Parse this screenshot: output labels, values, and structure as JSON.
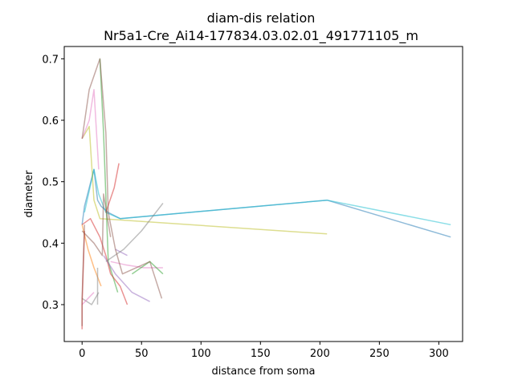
{
  "chart_data": {
    "type": "line",
    "title": "diam-dis relation",
    "subtitle": "Nr5a1-Cre_Ai14-177834.03.02.01_491771105_m",
    "xlabel": "distance from soma",
    "ylabel": "diameter",
    "xlim": [
      -15,
      320
    ],
    "ylim": [
      0.24,
      0.72
    ],
    "xticks": [
      0,
      50,
      100,
      150,
      200,
      250,
      300
    ],
    "yticks": [
      0.3,
      0.4,
      0.5,
      0.6,
      0.7
    ],
    "xtick_labels": [
      "0",
      "50",
      "100",
      "150",
      "200",
      "250",
      "300"
    ],
    "ytick_labels": [
      "0.3",
      "0.4",
      "0.5",
      "0.6",
      "0.7"
    ],
    "grid": false,
    "legend": "none",
    "series": [
      {
        "color": "#1f77b4",
        "x": [
          0,
          2,
          10,
          13,
          16,
          22,
          32,
          206,
          310
        ],
        "y": [
          0.43,
          0.46,
          0.52,
          0.47,
          0.46,
          0.45,
          0.44,
          0.47,
          0.41
        ]
      },
      {
        "color": "#17becf",
        "x": [
          2,
          10,
          14,
          20,
          32,
          206,
          310
        ],
        "y": [
          0.45,
          0.52,
          0.48,
          0.45,
          0.44,
          0.47,
          0.43
        ]
      },
      {
        "color": "#bcbd22",
        "x": [
          0,
          6,
          10,
          15,
          206
        ],
        "y": [
          0.57,
          0.59,
          0.47,
          0.44,
          0.415
        ]
      },
      {
        "color": "#2ca02c",
        "x": [
          15,
          18,
          22,
          30
        ],
        "y": [
          0.7,
          0.58,
          0.37,
          0.32
        ]
      },
      {
        "color": "#d62728",
        "x": [
          0,
          7,
          15,
          20,
          24,
          32,
          38
        ],
        "y": [
          0.43,
          0.44,
          0.41,
          0.38,
          0.35,
          0.33,
          0.3
        ]
      },
      {
        "color": "#ff7f0e",
        "x": [
          0,
          5,
          10,
          16
        ],
        "y": [
          0.43,
          0.39,
          0.36,
          0.33
        ]
      },
      {
        "color": "#9467bd",
        "x": [
          18,
          28,
          42,
          57
        ],
        "y": [
          0.38,
          0.35,
          0.32,
          0.305
        ]
      },
      {
        "color": "#9467bd",
        "x": [
          28,
          38
        ],
        "y": [
          0.39,
          0.38
        ]
      },
      {
        "color": "#e377c2",
        "x": [
          0,
          6,
          10,
          14
        ],
        "y": [
          0.57,
          0.6,
          0.65,
          0.52
        ]
      },
      {
        "color": "#e377c2",
        "x": [
          24,
          36,
          52,
          68
        ],
        "y": [
          0.37,
          0.365,
          0.36,
          0.36
        ]
      },
      {
        "color": "#7f7f7f",
        "x": [
          0,
          8,
          14
        ],
        "y": [
          0.31,
          0.3,
          0.32
        ]
      },
      {
        "color": "#7f7f7f",
        "x": [
          13,
          13
        ],
        "y": [
          0.3,
          0.36
        ]
      },
      {
        "color": "#7f7f7f",
        "x": [
          20,
          35,
          50,
          68
        ],
        "y": [
          0.37,
          0.39,
          0.42,
          0.465
        ]
      },
      {
        "color": "#e377c2",
        "x": [
          0,
          5,
          10
        ],
        "y": [
          0.3,
          0.31,
          0.32
        ]
      },
      {
        "color": "#2ca02c",
        "x": [
          42,
          57,
          68
        ],
        "y": [
          0.35,
          0.37,
          0.35
        ]
      },
      {
        "color": "#d62728",
        "x": [
          20,
          27,
          31
        ],
        "y": [
          0.45,
          0.49,
          0.53
        ]
      },
      {
        "color": "#d62728",
        "x": [
          0,
          0,
          2
        ],
        "y": [
          0.26,
          0.3,
          0.42
        ]
      },
      {
        "color": "#8c564b",
        "x": [
          0,
          0,
          2
        ],
        "y": [
          0.265,
          0.31,
          0.43
        ]
      },
      {
        "color": "#8c564b",
        "x": [
          0,
          6,
          15,
          20,
          22,
          28,
          34,
          57,
          67
        ],
        "y": [
          0.57,
          0.65,
          0.7,
          0.58,
          0.45,
          0.39,
          0.35,
          0.37,
          0.31
        ]
      },
      {
        "color": "#8c564b",
        "x": [
          0,
          10,
          17,
          18,
          24
        ],
        "y": [
          0.42,
          0.4,
          0.38,
          0.48,
          0.41
        ]
      }
    ]
  }
}
